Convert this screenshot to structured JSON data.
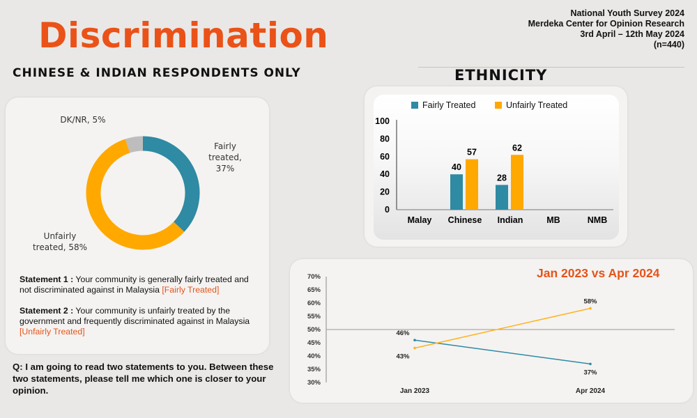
{
  "header": {
    "title": "Discrimination",
    "survey": "National Youth Survey 2024",
    "organisation": "Merdeka Center for Opinion Research",
    "dates": "3rd April – 12th May 2024",
    "sample": "(n=440)"
  },
  "donut_section": {
    "subtitle": "CHINESE & INDIAN RESPONDENTS ONLY",
    "statement1": {
      "label": "Statement 1 :",
      "text": " Your community is generally fairly treated and not discriminated against in Malaysia ",
      "tag": "[Fairly Treated]"
    },
    "statement2": {
      "label": "Statement 2 :",
      "text": " Your community is unfairly treated by the government and frequently discriminated against in Malaysia ",
      "tag": "[Unfairly Treated]"
    },
    "question": "Q: I am going to read two statements to you. Between these two statements, please tell me which one is closer to your opinion."
  },
  "bar_section": {
    "heading": "ETHNICITY"
  },
  "line_section": {
    "title": "Jan 2023 vs Apr 2024"
  },
  "colors": {
    "fair": "#2f8aa3",
    "unfair": "#ffa800",
    "dk": "#bdbdbd",
    "accent": "#e5531a",
    "line_fair": "#2f8aa3",
    "line_unfair": "#ffb31f"
  },
  "chart_data": [
    {
      "type": "pie",
      "variant": "donut",
      "slices": [
        {
          "label_lines": [
            "Fairly",
            "treated,",
            "37%"
          ],
          "name": "Fairly treated",
          "value": 37,
          "color": "#2f8aa3"
        },
        {
          "label_lines": [
            "Unfairly",
            "treated, 58%"
          ],
          "name": "Unfairly treated",
          "value": 58,
          "color": "#ffa800"
        },
        {
          "label_lines": [
            "DK/NR, 5%"
          ],
          "name": "DK/NR",
          "value": 5,
          "color": "#bdbdbd"
        }
      ]
    },
    {
      "type": "bar",
      "categories": [
        "Malay",
        "Chinese",
        "Indian",
        "MB",
        "NMB"
      ],
      "series": [
        {
          "name": "Fairly Treated",
          "color": "#2f8aa3",
          "values": [
            null,
            40,
            28,
            null,
            null
          ]
        },
        {
          "name": "Unfairly Treated",
          "color": "#ffa800",
          "values": [
            null,
            57,
            62,
            null,
            null
          ]
        }
      ],
      "ylim": [
        0,
        100
      ],
      "yticks": [
        "100",
        "80",
        "60",
        "40",
        "20",
        "0"
      ],
      "ytick_values": [
        100,
        80,
        60,
        40,
        20,
        0
      ],
      "legend": "top"
    },
    {
      "type": "line",
      "title": "Jan 2023 vs Apr 2024",
      "categories": [
        "Jan 2023",
        "Apr 2024"
      ],
      "series": [
        {
          "name": "Fairly treated",
          "color": "#2f8aa3",
          "values": [
            46,
            37
          ],
          "labels": [
            "46%",
            "37%"
          ]
        },
        {
          "name": "Unfairly treated",
          "color": "#ffb31f",
          "values": [
            43,
            58
          ],
          "labels": [
            "43%",
            "58%"
          ]
        }
      ],
      "ylim": [
        30,
        70
      ],
      "yticks": [
        "70%",
        "65%",
        "60%",
        "55%",
        "50%",
        "45%",
        "40%",
        "35%",
        "30%"
      ],
      "ytick_values": [
        70,
        65,
        60,
        55,
        50,
        45,
        40,
        35,
        30
      ],
      "reference_line": 50
    }
  ]
}
